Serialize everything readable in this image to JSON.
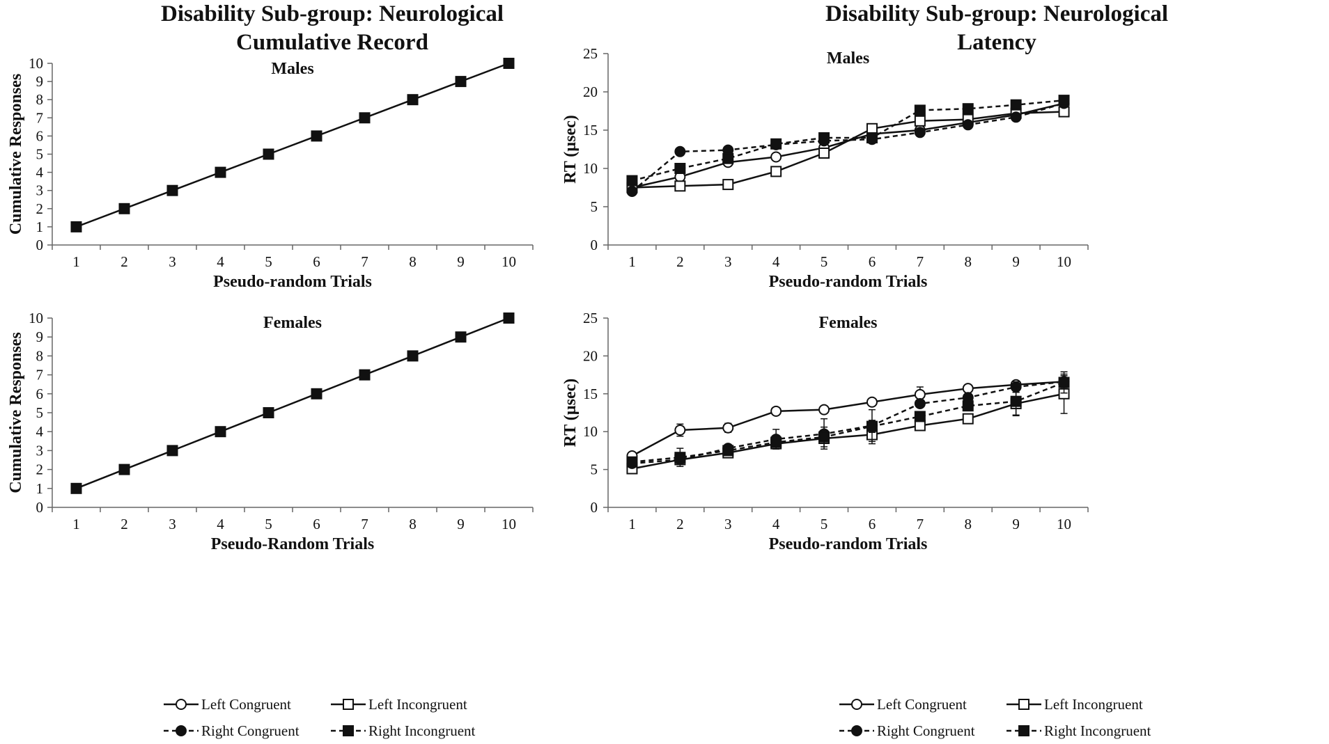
{
  "figure": {
    "left_title": [
      "Disability Sub-group: Neurological",
      "Cumulative Record"
    ],
    "right_title": [
      "Disability Sub-group: Neurological",
      "Latency"
    ]
  },
  "legend": {
    "items": [
      "Left Congruent",
      "Left Incongruent",
      "Right Congruent",
      "Right Incongruent"
    ]
  },
  "colors": {
    "ink": "#111111",
    "axis": "#666666",
    "background": "#ffffff"
  },
  "chart_data": [
    {
      "id": "cum-males",
      "type": "line",
      "title": "Males",
      "xlabel": "Pseudo-random Trials",
      "ylabel": "Cumulative Responses",
      "x": [
        1,
        2,
        3,
        4,
        5,
        6,
        7,
        8,
        9,
        10
      ],
      "ylim": [
        0,
        10
      ],
      "yticks": [
        0,
        1,
        2,
        3,
        4,
        5,
        6,
        7,
        8,
        9,
        10
      ],
      "series": [
        {
          "name": "Cumulative",
          "style": "solid",
          "marker": "square-filled",
          "values": [
            1,
            2,
            3,
            4,
            5,
            6,
            7,
            8,
            9,
            10
          ]
        }
      ]
    },
    {
      "id": "lat-males",
      "type": "line",
      "title": "Males",
      "xlabel": "Pseudo-random Trials",
      "ylabel": "RT (µsec)",
      "x": [
        1,
        2,
        3,
        4,
        5,
        6,
        7,
        8,
        9,
        10
      ],
      "ylim": [
        0,
        25
      ],
      "yticks": [
        0,
        5,
        10,
        15,
        20,
        25
      ],
      "series": [
        {
          "name": "Left Congruent",
          "style": "solid",
          "marker": "circle-open",
          "values": [
            7.5,
            8.9,
            10.8,
            11.5,
            12.7,
            14.5,
            15.0,
            16.0,
            17.0,
            18.5
          ]
        },
        {
          "name": "Left Incongruent",
          "style": "solid",
          "marker": "square-open",
          "values": [
            7.5,
            7.7,
            7.9,
            9.6,
            12.0,
            15.2,
            16.2,
            16.4,
            17.2,
            17.4
          ]
        },
        {
          "name": "Right Congruent",
          "style": "dashed",
          "marker": "circle-filled",
          "values": [
            7.0,
            12.2,
            12.4,
            13.1,
            13.6,
            13.8,
            14.7,
            15.7,
            16.7,
            18.5
          ]
        },
        {
          "name": "Right Incongruent",
          "style": "dashed",
          "marker": "square-filled",
          "values": [
            8.4,
            10.0,
            11.3,
            13.2,
            14.0,
            14.0,
            17.6,
            17.8,
            18.3,
            18.9
          ]
        }
      ]
    },
    {
      "id": "cum-females",
      "type": "line",
      "title": "Females",
      "xlabel": "Pseudo-Random Trials",
      "ylabel": "Cumulative Responses",
      "x": [
        1,
        2,
        3,
        4,
        5,
        6,
        7,
        8,
        9,
        10
      ],
      "ylim": [
        0,
        10
      ],
      "yticks": [
        0,
        1,
        2,
        3,
        4,
        5,
        6,
        7,
        8,
        9,
        10
      ],
      "series": [
        {
          "name": "Cumulative",
          "style": "solid",
          "marker": "square-filled",
          "values": [
            1,
            2,
            3,
            4,
            5,
            6,
            7,
            8,
            9,
            10
          ]
        }
      ]
    },
    {
      "id": "lat-females",
      "type": "line",
      "title": "Females",
      "xlabel": "Pseudo-random Trials",
      "ylabel": "RT (µsec)",
      "x": [
        1,
        2,
        3,
        4,
        5,
        6,
        7,
        8,
        9,
        10
      ],
      "ylim": [
        0,
        25
      ],
      "yticks": [
        0,
        5,
        10,
        15,
        20,
        25
      ],
      "series": [
        {
          "name": "Left Congruent",
          "style": "solid",
          "marker": "circle-open",
          "values": [
            6.8,
            10.2,
            10.5,
            12.7,
            12.9,
            13.9,
            14.9,
            15.7,
            16.2,
            16.6
          ],
          "error": [
            0.4,
            0.8,
            0.6,
            0.3,
            0.4,
            0.3,
            1.0,
            0.3,
            0.4,
            0.5
          ]
        },
        {
          "name": "Left Incongruent",
          "style": "solid",
          "marker": "square-open",
          "values": [
            5.1,
            6.3,
            7.2,
            8.4,
            9.1,
            9.6,
            10.8,
            11.7,
            13.7,
            15.0
          ],
          "error": [
            0.3,
            0.5,
            0.4,
            0.4,
            0.5,
            1.2,
            0.4,
            0.3,
            1.5,
            2.6
          ]
        },
        {
          "name": "Right Congruent",
          "style": "dashed",
          "marker": "circle-filled",
          "values": [
            5.8,
            6.3,
            7.8,
            9.0,
            9.7,
            10.8,
            13.7,
            14.5,
            15.9,
            16.6
          ],
          "error": [
            0.4,
            0.6,
            0.5,
            1.3,
            2.0,
            2.1,
            0.4,
            0.5,
            0.7,
            0.8
          ]
        },
        {
          "name": "Right Incongruent",
          "style": "dashed",
          "marker": "square-filled",
          "values": [
            6.0,
            6.6,
            7.5,
            8.6,
            9.3,
            10.7,
            12.0,
            13.4,
            14.0,
            16.5
          ],
          "error": [
            0.3,
            1.2,
            0.5,
            0.4,
            1.3,
            0.8,
            0.4,
            0.5,
            1.9,
            1.4
          ]
        }
      ]
    }
  ]
}
